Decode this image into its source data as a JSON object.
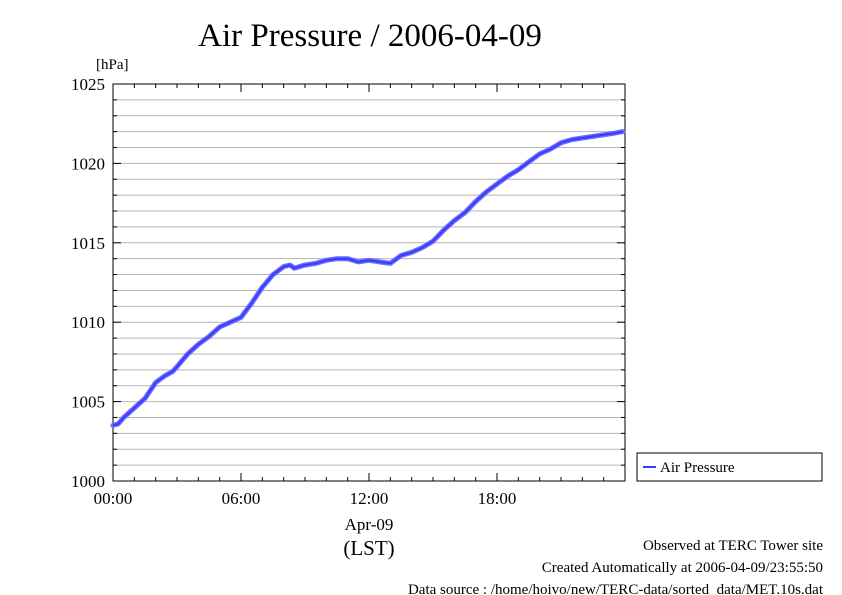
{
  "chart_data": {
    "type": "line",
    "title": "Air Pressure / 2006-04-09",
    "ylabel": "[hPa]",
    "xlabel": "Apr-09",
    "xlabel_sub": "(LST)",
    "ylim": [
      1000,
      1025
    ],
    "xlim": [
      0,
      24
    ],
    "grid": true,
    "legend_position": "right",
    "yticks": [
      {
        "value": 1000,
        "label": "1000"
      },
      {
        "value": 1005,
        "label": "1005"
      },
      {
        "value": 1010,
        "label": "1010"
      },
      {
        "value": 1015,
        "label": "1015"
      },
      {
        "value": 1020,
        "label": "1020"
      },
      {
        "value": 1025,
        "label": "1025"
      }
    ],
    "xticks": [
      {
        "value": 0,
        "label": "00:00"
      },
      {
        "value": 6,
        "label": "06:00"
      },
      {
        "value": 12,
        "label": "12:00"
      },
      {
        "value": 18,
        "label": "18:00"
      }
    ],
    "series": [
      {
        "name": "Air Pressure",
        "color": "#3a3aff",
        "x": [
          0.0,
          0.25,
          0.5,
          1.0,
          1.5,
          2.0,
          2.4,
          2.8,
          3.0,
          3.5,
          4.0,
          4.5,
          5.0,
          5.5,
          6.0,
          6.5,
          7.0,
          7.5,
          8.0,
          8.3,
          8.5,
          9.0,
          9.5,
          10.0,
          10.5,
          11.0,
          11.5,
          12.0,
          12.5,
          13.0,
          13.5,
          14.0,
          14.5,
          15.0,
          15.5,
          16.0,
          16.5,
          17.0,
          17.5,
          18.0,
          18.5,
          19.0,
          19.5,
          20.0,
          20.5,
          21.0,
          21.5,
          22.0,
          22.5,
          23.0,
          23.5,
          23.9
        ],
        "y": [
          1003.5,
          1003.6,
          1004.0,
          1004.6,
          1005.2,
          1006.2,
          1006.6,
          1006.9,
          1007.2,
          1008.0,
          1008.6,
          1009.1,
          1009.7,
          1010.0,
          1010.3,
          1011.2,
          1012.2,
          1013.0,
          1013.5,
          1013.6,
          1013.4,
          1013.6,
          1013.7,
          1013.9,
          1014.0,
          1014.0,
          1013.8,
          1013.9,
          1013.8,
          1013.7,
          1014.2,
          1014.4,
          1014.7,
          1015.1,
          1015.8,
          1016.4,
          1016.9,
          1017.6,
          1018.2,
          1018.7,
          1019.2,
          1019.6,
          1020.1,
          1020.6,
          1020.9,
          1021.3,
          1021.5,
          1021.6,
          1021.7,
          1021.8,
          1021.9,
          1022.0
        ]
      }
    ]
  },
  "footer": {
    "line1": "Observed at TERC Tower site",
    "line2": "Created Automatically at 2006-04-09/23:55:50",
    "line3": "Data source : /home/hoivo/new/TERC-data/sorted_data/MET.10s.dat"
  }
}
